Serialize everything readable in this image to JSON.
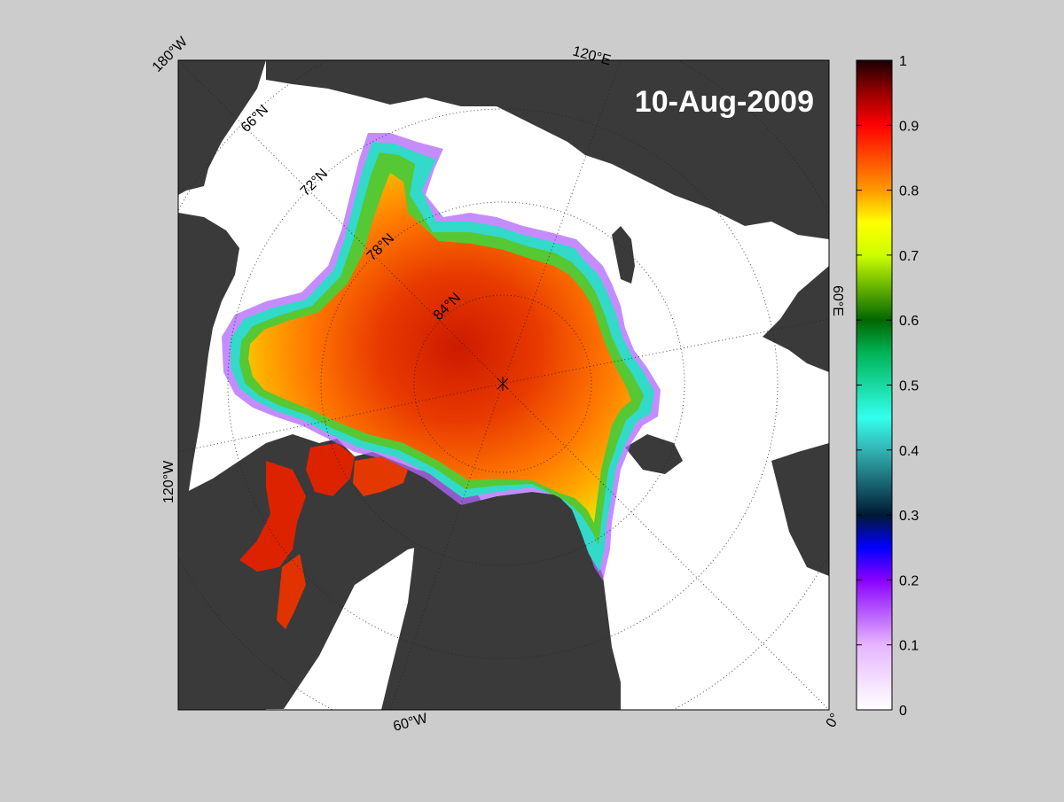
{
  "map": {
    "date_label": "10-Aug-2009",
    "grid_labels": {
      "lon_180w": "180°W",
      "lon_120e": "120°E",
      "lon_60e": "60°E",
      "lon_120w": "120°W",
      "lon_60w": "60°W",
      "lon_0": "0°",
      "lat_66n": "66°N",
      "lat_72n": "72°N",
      "lat_78n": "78°N",
      "lat_84n": "84°N"
    }
  },
  "colorbar": {
    "ticks": [
      "0",
      "0.1",
      "0.2",
      "0.3",
      "0.4",
      "0.5",
      "0.6",
      "0.7",
      "0.8",
      "0.9",
      "1"
    ],
    "range": [
      0,
      1
    ],
    "stops": [
      {
        "v": 0.0,
        "c": "#ffffff"
      },
      {
        "v": 0.1,
        "c": "#e6b6ff"
      },
      {
        "v": 0.2,
        "c": "#8800ff"
      },
      {
        "v": 0.25,
        "c": "#0000ff"
      },
      {
        "v": 0.3,
        "c": "#001a33"
      },
      {
        "v": 0.4,
        "c": "#33b3b3"
      },
      {
        "v": 0.45,
        "c": "#33ffee"
      },
      {
        "v": 0.55,
        "c": "#00b355"
      },
      {
        "v": 0.6,
        "c": "#006600"
      },
      {
        "v": 0.7,
        "c": "#ccff00"
      },
      {
        "v": 0.75,
        "c": "#ffff00"
      },
      {
        "v": 0.8,
        "c": "#ff9900"
      },
      {
        "v": 0.9,
        "c": "#ff0000"
      },
      {
        "v": 0.95,
        "c": "#990000"
      },
      {
        "v": 1.0,
        "c": "#1a0000"
      }
    ]
  },
  "colors": {
    "background": "#cccccc",
    "land": "#3a3a3a",
    "ocean": "#ffffff",
    "ice_high": "#d42200",
    "ice_mid": "#ff8800",
    "ice_low": "#ffff00",
    "ice_edge": "#33e0d0",
    "ice_fringe": "#9933ff"
  }
}
